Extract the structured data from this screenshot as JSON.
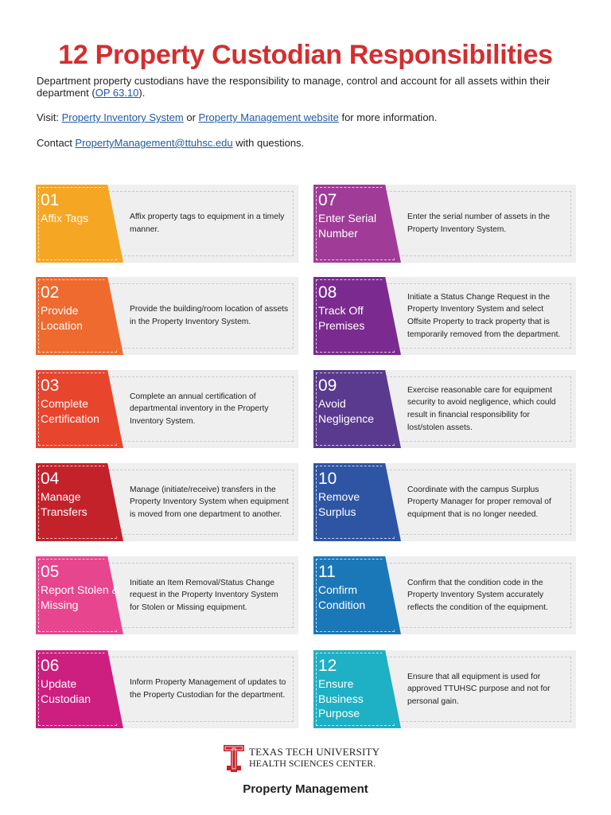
{
  "header": {
    "title": "12 Property Custodian Responsibilities",
    "intro_text": "Department property custodians have the responsibility to manage, control and account for all assets within their department (",
    "intro_link": "OP 63.10",
    "intro_end": ").",
    "visit_prefix": "Visit: ",
    "visit_link_1": "Property Inventory System",
    "visit_or": " or ",
    "visit_link_2": "Property Management website",
    "visit_suffix": " for more information.",
    "contact_prefix": "Contact ",
    "contact_email": "PropertyManagement@ttuhsc.edu",
    "contact_suffix": " with questions."
  },
  "responsibilities": [
    {
      "num": "01",
      "label": "Affix Tags",
      "color": "#f5a623",
      "desc": "Affix property tags to equipment in a timely manner."
    },
    {
      "num": "02",
      "label": "Provide Location",
      "color": "#ef6a2e",
      "desc": "Provide the building/room location of assets in the Property Inventory System."
    },
    {
      "num": "03",
      "label": "Complete Certification",
      "color": "#e8452d",
      "desc": "Complete an annual certification of departmental inventory in the Property Inventory System."
    },
    {
      "num": "04",
      "label": "Manage Transfers",
      "color": "#c4222b",
      "desc": "Manage (initiate/receive) transfers in the Property Inventory System when equipment is moved from one department to another."
    },
    {
      "num": "05",
      "label": "Report Stolen & Missing",
      "color": "#e8458f",
      "desc": "Initiate an Item Removal/Status Change request in the Property Inventory System for Stolen or Missing equipment."
    },
    {
      "num": "06",
      "label": "Update Custodian",
      "color": "#cc1f7f",
      "desc": "Inform Property Management of updates to the Property Custodian for the department."
    },
    {
      "num": "07",
      "label": "Enter Serial Number",
      "color": "#a03c98",
      "desc": "Enter the serial number of assets in the Property Inventory System."
    },
    {
      "num": "08",
      "label": "Track Off Premises",
      "color": "#7b2b8f",
      "desc": "Initiate a Status Change Request in the Property Inventory System and select Offsite Property to track property that is temporarily removed from the department."
    },
    {
      "num": "09",
      "label": "Avoid Negligence",
      "color": "#5a3a8e",
      "desc": "Exercise reasonable care for equipment security to avoid negligence, which could result in financial responsibility for lost/stolen assets."
    },
    {
      "num": "10",
      "label": "Remove Surplus",
      "color": "#2e55a4",
      "desc": "Coordinate with the campus Surplus Property Manager for proper removal of equipment that is no longer needed."
    },
    {
      "num": "11",
      "label": "Confirm Condition",
      "color": "#1b78b8",
      "desc": "Confirm that the condition code in the Property Inventory System accurately reflects the condition of the equipment."
    },
    {
      "num": "12",
      "label": "Ensure Business Purpose",
      "color": "#1eb0c4",
      "desc": "Ensure that all equipment is used for approved TTUHSC purpose and not for personal gain."
    }
  ],
  "footer": {
    "university": "TEXAS TECH UNIVERSITY",
    "center": "HEALTH SCIENCES CENTER.",
    "department": "Property Management",
    "logo_color": "#c4222b"
  }
}
